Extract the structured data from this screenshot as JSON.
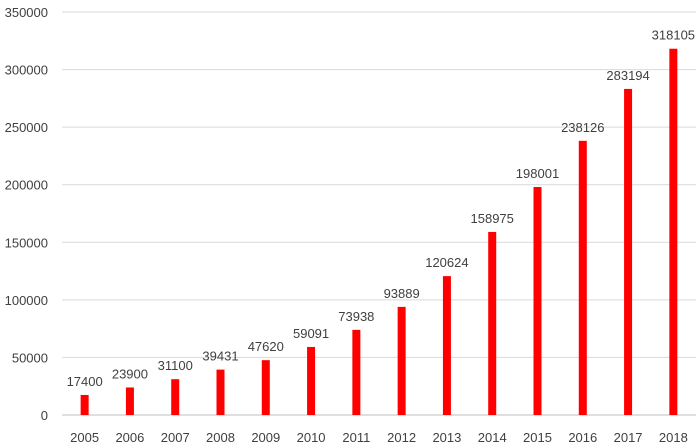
{
  "chart_data": {
    "type": "bar",
    "title": "",
    "xlabel": "",
    "ylabel": "",
    "categories": [
      "2005",
      "2006",
      "2007",
      "2008",
      "2009",
      "2010",
      "2011",
      "2012",
      "2013",
      "2014",
      "2015",
      "2016",
      "2017",
      "2018"
    ],
    "values": [
      17400,
      23900,
      31100,
      39431,
      47620,
      59091,
      73938,
      93889,
      120624,
      158975,
      198001,
      238126,
      283194,
      318105
    ],
    "ylim": [
      0,
      350000
    ],
    "yticks": [
      0,
      50000,
      100000,
      150000,
      200000,
      250000,
      300000,
      350000
    ],
    "grid": true,
    "data_labels": true,
    "bar_color": "#ff0000"
  }
}
